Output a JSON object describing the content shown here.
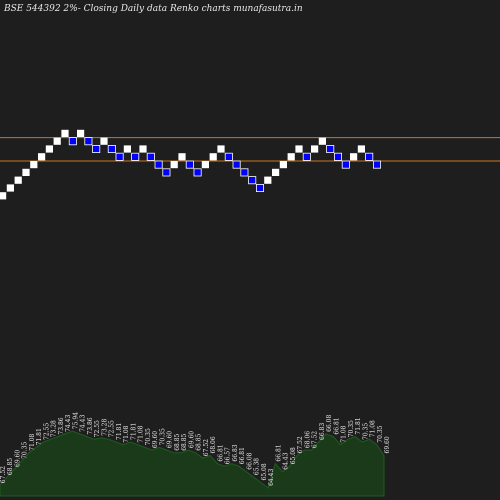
{
  "chart_data": {
    "type": "renko",
    "title": "BSE 544392  2%-  Closing Daily data Renko  charts munafasutra.in",
    "colors": {
      "background": "#1e1e1e",
      "up_brick": "#ffffff",
      "down_brick": "#0000ff",
      "down_brick_border": "#ffffff",
      "reference_line": "#c8781e",
      "volume_fill": "#1a3a1a",
      "volume_stroke": "#1e5c1e",
      "text": "#e8e8e8"
    },
    "bricks": [
      {
        "direction": "up",
        "level": 0
      },
      {
        "direction": "up",
        "level": 1
      },
      {
        "direction": "up",
        "level": 2
      },
      {
        "direction": "up",
        "level": 3
      },
      {
        "direction": "up",
        "level": 4
      },
      {
        "direction": "up",
        "level": 5
      },
      {
        "direction": "up",
        "level": 6
      },
      {
        "direction": "up",
        "level": 7
      },
      {
        "direction": "up",
        "level": 8
      },
      {
        "direction": "down",
        "level": 7
      },
      {
        "direction": "up",
        "level": 8
      },
      {
        "direction": "down",
        "level": 7
      },
      {
        "direction": "down",
        "level": 6
      },
      {
        "direction": "up",
        "level": 7
      },
      {
        "direction": "down",
        "level": 6
      },
      {
        "direction": "down",
        "level": 5
      },
      {
        "direction": "up",
        "level": 6
      },
      {
        "direction": "down",
        "level": 5
      },
      {
        "direction": "up",
        "level": 6
      },
      {
        "direction": "down",
        "level": 5
      },
      {
        "direction": "down",
        "level": 4
      },
      {
        "direction": "down",
        "level": 3
      },
      {
        "direction": "up",
        "level": 4
      },
      {
        "direction": "up",
        "level": 5
      },
      {
        "direction": "down",
        "level": 4
      },
      {
        "direction": "down",
        "level": 3
      },
      {
        "direction": "up",
        "level": 4
      },
      {
        "direction": "up",
        "level": 5
      },
      {
        "direction": "up",
        "level": 6
      },
      {
        "direction": "down",
        "level": 5
      },
      {
        "direction": "down",
        "level": 4
      },
      {
        "direction": "down",
        "level": 3
      },
      {
        "direction": "down",
        "level": 2
      },
      {
        "direction": "down",
        "level": 1
      },
      {
        "direction": "up",
        "level": 2
      },
      {
        "direction": "up",
        "level": 3
      },
      {
        "direction": "up",
        "level": 4
      },
      {
        "direction": "up",
        "level": 5
      },
      {
        "direction": "up",
        "level": 6
      },
      {
        "direction": "down",
        "level": 5
      },
      {
        "direction": "up",
        "level": 6
      },
      {
        "direction": "up",
        "level": 7
      },
      {
        "direction": "down",
        "level": 6
      },
      {
        "direction": "down",
        "level": 5
      },
      {
        "direction": "down",
        "level": 4
      },
      {
        "direction": "up",
        "level": 5
      },
      {
        "direction": "up",
        "level": 6
      },
      {
        "direction": "down",
        "level": 5
      },
      {
        "direction": "down",
        "level": 4
      }
    ],
    "reference_lines": [
      {
        "level": 7.5
      },
      {
        "level": 4.5
      }
    ],
    "volume_labels": [
      "67.52",
      "68.85",
      "69.60",
      "70.35",
      "71.08",
      "71.81",
      "72.55",
      "73.28",
      "73.86",
      "74.43",
      "75.94",
      "74.43",
      "73.86",
      "72.55",
      "73.28",
      "72.55",
      "71.81",
      "71.08",
      "71.81",
      "71.08",
      "70.35",
      "69.60",
      "70.35",
      "69.60",
      "68.85",
      "68.85",
      "69.60",
      "68.85",
      "67.52",
      "68.06",
      "66.81",
      "66.57",
      "66.83",
      "66.81",
      "66.08",
      "65.38",
      "65.08",
      "64.43",
      "66.81",
      "64.43",
      "65.08",
      "67.52",
      "68.06",
      "67.52",
      "66.83",
      "66.08",
      "66.81",
      "71.08",
      "70.35",
      "71.81",
      "70.35",
      "71.08",
      "70.35",
      "69.60"
    ],
    "volume_values": [
      8,
      14,
      20,
      26,
      32,
      36,
      40,
      42,
      44,
      46,
      48,
      46,
      44,
      42,
      43,
      42,
      40,
      38,
      40,
      38,
      36,
      34,
      36,
      34,
      32,
      32,
      34,
      32,
      28,
      30,
      24,
      22,
      24,
      22,
      18,
      14,
      10,
      6,
      24,
      18,
      22,
      30,
      34,
      34,
      40,
      46,
      44,
      38,
      42,
      44,
      40,
      42,
      38,
      30
    ]
  }
}
